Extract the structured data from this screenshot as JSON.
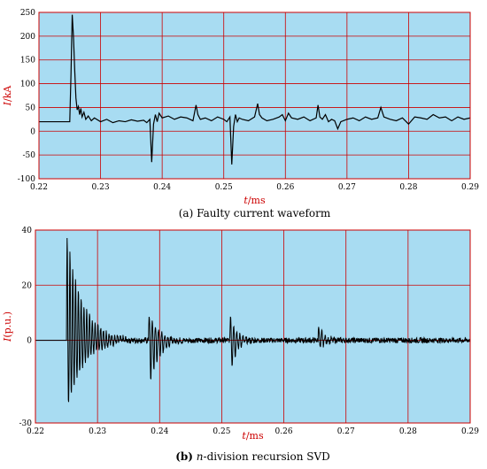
{
  "chart_data": [
    {
      "type": "line",
      "caption_prefix": "(a)",
      "caption_text": "Faulty current waveform",
      "xlabel_var": "t",
      "xlabel_unit": "/ms",
      "ylabel_var": "I",
      "ylabel_unit": "/kA",
      "xlim": [
        0.22,
        0.29
      ],
      "ylim": [
        -100,
        250
      ],
      "xticks": [
        "0.22",
        "0.23",
        "0.24",
        "0.25",
        "0.26",
        "0.27",
        "0.28",
        "0.29"
      ],
      "yticks": [
        "250",
        "200",
        "150",
        "100",
        "50",
        "0",
        "-50",
        "-100"
      ],
      "grid": true,
      "colors": {
        "plot_bg": "#a8dcf2",
        "frame": "#cc0000",
        "grid": "#cc0000",
        "line": "#000000"
      },
      "series": [
        {
          "x": [
            0.22,
            0.225,
            0.2252,
            0.2254,
            0.2256,
            0.2258,
            0.226,
            0.2262,
            0.2264,
            0.2266,
            0.2268,
            0.227,
            0.2273,
            0.2276,
            0.228,
            0.2285,
            0.229,
            0.23,
            0.231,
            0.232,
            0.233,
            0.234,
            0.235,
            0.236,
            0.237,
            0.2375,
            0.238,
            0.2383,
            0.2386,
            0.2389,
            0.2392,
            0.2395,
            0.24,
            0.241,
            0.242,
            0.243,
            0.244,
            0.245,
            0.2455,
            0.2458,
            0.2462,
            0.247,
            0.248,
            0.249,
            0.25,
            0.2505,
            0.251,
            0.2513,
            0.2516,
            0.2519,
            0.2522,
            0.2525,
            0.253,
            0.254,
            0.255,
            0.2555,
            0.2558,
            0.2562,
            0.257,
            0.258,
            0.259,
            0.2595,
            0.26,
            0.2605,
            0.261,
            0.262,
            0.263,
            0.264,
            0.265,
            0.2653,
            0.2656,
            0.266,
            0.2665,
            0.267,
            0.2675,
            0.268,
            0.2685,
            0.269,
            0.27,
            0.271,
            0.272,
            0.273,
            0.274,
            0.275,
            0.2755,
            0.276,
            0.277,
            0.278,
            0.279,
            0.28,
            0.281,
            0.282,
            0.283,
            0.284,
            0.285,
            0.286,
            0.287,
            0.288,
            0.289,
            0.29
          ],
          "y": [
            20,
            20,
            120,
            245,
            200,
            130,
            70,
            45,
            52,
            35,
            48,
            30,
            40,
            25,
            32,
            22,
            28,
            20,
            25,
            18,
            22,
            20,
            24,
            21,
            23,
            18,
            25,
            -65,
            15,
            35,
            20,
            38,
            28,
            32,
            25,
            30,
            28,
            22,
            55,
            35,
            25,
            28,
            22,
            30,
            25,
            20,
            30,
            -70,
            10,
            35,
            20,
            28,
            25,
            22,
            30,
            58,
            35,
            28,
            22,
            25,
            30,
            35,
            22,
            38,
            28,
            25,
            30,
            22,
            28,
            55,
            30,
            25,
            35,
            20,
            25,
            22,
            5,
            20,
            25,
            28,
            22,
            30,
            25,
            28,
            50,
            30,
            25,
            22,
            28,
            15,
            30,
            28,
            25,
            35,
            28,
            30,
            22,
            30,
            25,
            28
          ]
        }
      ]
    },
    {
      "type": "line",
      "caption_prefix": "(b)",
      "caption_text": "n-division recursion SVD",
      "xlabel_var": "t",
      "xlabel_unit": "/ms",
      "ylabel_var": "I",
      "ylabel_unit": "(p.u.)",
      "xlim": [
        0.22,
        0.29
      ],
      "ylim": [
        -30,
        40
      ],
      "xticks": [
        "0.22",
        "0.23",
        "0.24",
        "0.25",
        "0.26",
        "0.27",
        "0.28",
        "0.29"
      ],
      "yticks": [
        "40",
        "20",
        "0",
        "-30"
      ],
      "grid": true,
      "colors": {
        "plot_bg": "#a8dcf2",
        "frame": "#cc0000",
        "grid": "#cc0000",
        "line": "#000000"
      },
      "bursts": [
        {
          "t": 0.225,
          "amp_pos": 40,
          "amp_neg": -27,
          "decay_ms": 0.0025,
          "period_ms": 0.00045
        },
        {
          "t": 0.2382,
          "amp_pos": 10,
          "amp_neg": -19,
          "decay_ms": 0.0015,
          "period_ms": 0.0005
        },
        {
          "t": 0.2513,
          "amp_pos": 10,
          "amp_neg": -13,
          "decay_ms": 0.001,
          "period_ms": 0.0005
        },
        {
          "t": 0.2655,
          "amp_pos": 6,
          "amp_neg": -4,
          "decay_ms": 0.001,
          "period_ms": 0.0005
        }
      ],
      "noise_amplitude": 1.2
    }
  ]
}
